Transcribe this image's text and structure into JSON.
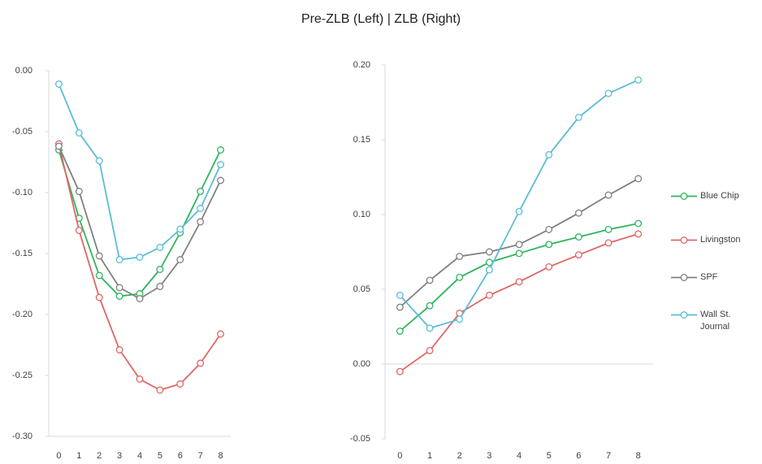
{
  "title": "Pre-ZLB (Left) | ZLB (Right)",
  "chart_data": [
    {
      "type": "line",
      "categories": [
        "0",
        "1",
        "2",
        "3",
        "4",
        "5",
        "6",
        "7",
        "8"
      ],
      "ylim": [
        -0.3,
        0.0
      ],
      "yticks": [
        {
          "value": -0.3,
          "label": "-0.30"
        },
        {
          "value": -0.25,
          "label": "-0.25"
        },
        {
          "value": -0.2,
          "label": "-0.20"
        },
        {
          "value": -0.15,
          "label": "-0.15"
        },
        {
          "value": -0.1,
          "label": "-0.10"
        },
        {
          "value": -0.05,
          "label": "-0.05"
        },
        {
          "value": 0.0,
          "label": "0.00"
        }
      ],
      "series": [
        {
          "color": "#2db55d",
          "values": [
            -0.065,
            -0.121,
            -0.168,
            -0.185,
            -0.183,
            -0.163,
            -0.133,
            -0.099,
            -0.065
          ]
        },
        {
          "color": "#e06666",
          "values": [
            -0.06,
            -0.131,
            -0.186,
            -0.229,
            -0.253,
            -0.262,
            -0.257,
            -0.24,
            -0.216
          ]
        },
        {
          "color": "#808080",
          "values": [
            -0.062,
            -0.099,
            -0.152,
            -0.178,
            -0.187,
            -0.177,
            -0.155,
            -0.124,
            -0.09
          ]
        },
        {
          "color": "#5bbcd6",
          "values": [
            -0.011,
            -0.051,
            -0.074,
            -0.155,
            -0.153,
            -0.145,
            -0.13,
            -0.113,
            -0.077
          ]
        }
      ]
    },
    {
      "type": "line",
      "categories": [
        "0",
        "1",
        "2",
        "3",
        "4",
        "5",
        "6",
        "7",
        "8"
      ],
      "ylim": [
        -0.05,
        0.2
      ],
      "yticks": [
        {
          "value": -0.05,
          "label": "-0.05"
        },
        {
          "value": 0.0,
          "label": "0.00"
        },
        {
          "value": 0.05,
          "label": "0.05"
        },
        {
          "value": 0.1,
          "label": "0.10"
        },
        {
          "value": 0.15,
          "label": "0.15"
        },
        {
          "value": 0.2,
          "label": "0.20"
        }
      ],
      "series": [
        {
          "name": "Blue Chip",
          "color": "#2db55d",
          "values": [
            0.022,
            0.039,
            0.058,
            0.068,
            0.074,
            0.08,
            0.085,
            0.09,
            0.094
          ]
        },
        {
          "name": "Livingston",
          "color": "#e06666",
          "values": [
            -0.005,
            0.009,
            0.034,
            0.046,
            0.055,
            0.065,
            0.073,
            0.081,
            0.087
          ]
        },
        {
          "name": "SPF",
          "color": "#808080",
          "values": [
            0.038,
            0.056,
            0.072,
            0.075,
            0.08,
            0.09,
            0.101,
            0.113,
            0.124
          ]
        },
        {
          "name": "Wall St. Journal",
          "color": "#5bbcd6",
          "values": [
            0.046,
            0.024,
            0.03,
            0.063,
            0.102,
            0.14,
            0.165,
            0.181,
            0.19
          ]
        }
      ]
    }
  ]
}
